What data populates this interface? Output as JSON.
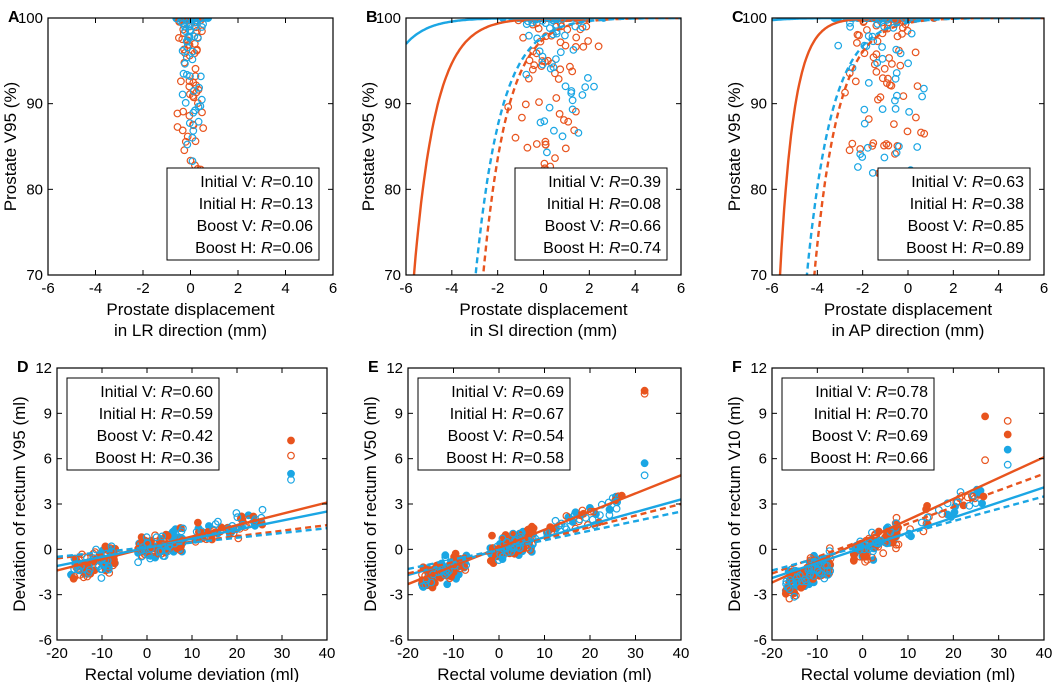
{
  "colors": {
    "orange": "#e8541e",
    "blue": "#1ba6e4"
  },
  "legend_labels": [
    "Initial V",
    "Initial H",
    "Boost V",
    "Boost H"
  ],
  "chart_data": [
    {
      "panel": "A",
      "type": "scatter",
      "xlabel_lines": [
        "Prostate displacement",
        "in LR direction (mm)"
      ],
      "ylabel": "Prostate V95 (%)",
      "xlim": [
        -6,
        6
      ],
      "ylim": [
        70,
        100
      ],
      "xticks": [
        -6,
        -4,
        -2,
        0,
        2,
        4,
        6
      ],
      "yticks": [
        70,
        80,
        90,
        100
      ],
      "legend_pos": "bottom-right",
      "R": [
        0.1,
        0.13,
        0.06,
        0.06
      ],
      "fits": [],
      "cluster": {
        "xcenter": 0,
        "xspread": 0.6,
        "ymin": 76,
        "mode": "v95"
      }
    },
    {
      "panel": "B",
      "type": "scatter",
      "xlabel_lines": [
        "Prostate displacement",
        "in SI direction (mm)"
      ],
      "ylabel": "Prostate V95 (%)",
      "xlim": [
        -6,
        6
      ],
      "ylim": [
        70,
        100
      ],
      "xticks": [
        -6,
        -4,
        -2,
        0,
        2,
        4,
        6
      ],
      "yticks": [
        70,
        80,
        90,
        100
      ],
      "legend_pos": "bottom-right",
      "R": [
        0.39,
        0.08,
        0.66,
        0.74
      ],
      "fits": [
        {
          "color": "orange",
          "dash": false,
          "kind": "sat",
          "x0": -6.8,
          "k": 1.05
        },
        {
          "color": "blue",
          "dash": false,
          "kind": "sat",
          "x0": -9.5,
          "k": 1.0
        },
        {
          "color": "orange",
          "dash": true,
          "kind": "sat",
          "x0": -3.9,
          "k": 0.95
        },
        {
          "color": "blue",
          "dash": true,
          "kind": "sat",
          "x0": -4.3,
          "k": 0.9
        }
      ],
      "cluster": {
        "xcenter": 0.4,
        "xspread": 1.7,
        "ymin": 74,
        "mode": "v95"
      }
    },
    {
      "panel": "C",
      "type": "scatter",
      "xlabel_lines": [
        "Prostate displacement",
        "in AP direction (mm)"
      ],
      "ylabel": "Prostate V95 (%)",
      "xlim": [
        -6,
        6
      ],
      "ylim": [
        70,
        100
      ],
      "xticks": [
        -6,
        -4,
        -2,
        0,
        2,
        4,
        6
      ],
      "yticks": [
        70,
        80,
        90,
        100
      ],
      "legend_pos": "bottom-right",
      "R": [
        0.63,
        0.38,
        0.85,
        0.89
      ],
      "fits": [
        {
          "color": "orange",
          "dash": false,
          "kind": "sat",
          "x0": -6.4,
          "k": 1.6
        },
        {
          "color": "blue",
          "dash": false,
          "kind": "sat",
          "x0": -12,
          "k": 1.0
        },
        {
          "color": "orange",
          "dash": true,
          "kind": "sat",
          "x0": -5.4,
          "k": 0.95
        },
        {
          "color": "blue",
          "dash": true,
          "kind": "sat",
          "x0": -5.8,
          "k": 0.9
        }
      ],
      "cluster": {
        "xcenter": -1.0,
        "xspread": 1.9,
        "ymin": 74,
        "mode": "v95"
      }
    },
    {
      "panel": "D",
      "type": "scatter",
      "xlabel_lines": [
        "Rectal volume deviation (ml)"
      ],
      "ylabel": "Deviation of rectum V95 (ml)",
      "xlim": [
        -20,
        40
      ],
      "ylim": [
        -6,
        12
      ],
      "xticks": [
        -20,
        -10,
        0,
        10,
        20,
        30,
        40
      ],
      "yticks": [
        -6,
        -3,
        0,
        3,
        6,
        9,
        12
      ],
      "legend_pos": "top-left",
      "R": [
        0.6,
        0.59,
        0.42,
        0.36
      ],
      "fits": [
        {
          "color": "orange",
          "dash": false,
          "kind": "line",
          "y0": -1.4,
          "y1": 3.1
        },
        {
          "color": "blue",
          "dash": false,
          "kind": "line",
          "y0": -1.1,
          "y1": 2.5
        },
        {
          "color": "orange",
          "dash": true,
          "kind": "line",
          "y0": -0.6,
          "y1": 1.6
        },
        {
          "color": "blue",
          "dash": true,
          "kind": "line",
          "y0": -0.5,
          "y1": 1.4
        }
      ],
      "outliers": [
        {
          "x": 32,
          "y": 7.2,
          "color": "orange",
          "filled": true
        },
        {
          "x": 32,
          "y": 6.2,
          "color": "orange",
          "filled": false
        },
        {
          "x": 32,
          "y": 5.0,
          "color": "blue",
          "filled": true
        },
        {
          "x": 32,
          "y": 4.6,
          "color": "blue",
          "filled": false
        }
      ],
      "cluster": {
        "slope": 0.08,
        "noise": 0.9,
        "mode": "dev"
      }
    },
    {
      "panel": "E",
      "type": "scatter",
      "xlabel_lines": [
        "Rectal volume deviation (ml)"
      ],
      "ylabel": "Deviation of rectum V50 (ml)",
      "xlim": [
        -20,
        40
      ],
      "ylim": [
        -6,
        12
      ],
      "xticks": [
        -20,
        -10,
        0,
        10,
        20,
        30,
        40
      ],
      "yticks": [
        -6,
        -3,
        0,
        3,
        6,
        9,
        12
      ],
      "legend_pos": "top-left",
      "R": [
        0.69,
        0.67,
        0.54,
        0.58
      ],
      "fits": [
        {
          "color": "orange",
          "dash": false,
          "kind": "line",
          "y0": -2.3,
          "y1": 4.9
        },
        {
          "color": "blue",
          "dash": false,
          "kind": "line",
          "y0": -1.7,
          "y1": 3.3
        },
        {
          "color": "orange",
          "dash": true,
          "kind": "line",
          "y0": -1.6,
          "y1": 3.0
        },
        {
          "color": "blue",
          "dash": true,
          "kind": "line",
          "y0": -1.3,
          "y1": 2.5
        }
      ],
      "outliers": [
        {
          "x": 32,
          "y": 10.5,
          "color": "orange",
          "filled": true
        },
        {
          "x": 32,
          "y": 10.3,
          "color": "orange",
          "filled": false
        },
        {
          "x": 32,
          "y": 5.7,
          "color": "blue",
          "filled": true
        },
        {
          "x": 32,
          "y": 4.9,
          "color": "blue",
          "filled": false
        }
      ],
      "cluster": {
        "slope": 0.12,
        "noise": 0.9,
        "mode": "dev"
      }
    },
    {
      "panel": "F",
      "type": "scatter",
      "xlabel_lines": [
        "Rectal volume deviation (ml)"
      ],
      "ylabel": "Deviation of rectum V10 (ml)",
      "xlim": [
        -20,
        40
      ],
      "ylim": [
        -6,
        12
      ],
      "xticks": [
        -20,
        -10,
        0,
        10,
        20,
        30,
        40
      ],
      "yticks": [
        -6,
        -3,
        0,
        3,
        6,
        9,
        12
      ],
      "legend_pos": "top-left",
      "R": [
        0.78,
        0.7,
        0.69,
        0.66
      ],
      "fits": [
        {
          "color": "orange",
          "dash": false,
          "kind": "line",
          "y0": -2.2,
          "y1": 6.1
        },
        {
          "color": "blue",
          "dash": false,
          "kind": "line",
          "y0": -1.9,
          "y1": 4.1
        },
        {
          "color": "orange",
          "dash": true,
          "kind": "line",
          "y0": -1.6,
          "y1": 5.0
        },
        {
          "color": "blue",
          "dash": true,
          "kind": "line",
          "y0": -1.4,
          "y1": 3.5
        }
      ],
      "outliers": [
        {
          "x": 27,
          "y": 8.8,
          "color": "orange",
          "filled": true
        },
        {
          "x": 32,
          "y": 8.5,
          "color": "orange",
          "filled": false
        },
        {
          "x": 32,
          "y": 7.6,
          "color": "orange",
          "filled": true
        },
        {
          "x": 32,
          "y": 6.6,
          "color": "blue",
          "filled": true
        },
        {
          "x": 32,
          "y": 5.6,
          "color": "blue",
          "filled": false
        },
        {
          "x": 27,
          "y": 5.9,
          "color": "orange",
          "filled": false
        }
      ],
      "cluster": {
        "slope": 0.14,
        "noise": 1.0,
        "mode": "dev"
      }
    }
  ]
}
